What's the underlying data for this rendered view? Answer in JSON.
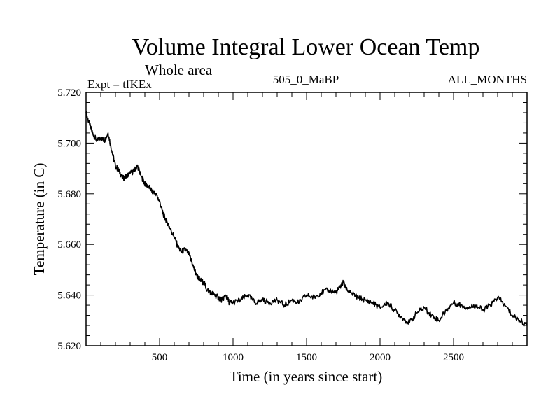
{
  "chart_data": {
    "type": "line",
    "title": "Volume Integral Lower Ocean Temp",
    "subtitle": "Whole area",
    "experiment_label": "Expt = tfKEx",
    "center_label": "505_0_MaBP",
    "right_label": "ALL_MONTHS",
    "xlabel": "Time (in years since start)",
    "ylabel": "Temperature (in C)",
    "xlim": [
      0,
      3000
    ],
    "ylim": [
      5.62,
      5.72
    ],
    "x_ticks": [
      500,
      1000,
      1500,
      2000,
      2500
    ],
    "y_ticks": [
      5.62,
      5.64,
      5.66,
      5.68,
      5.7,
      5.72
    ],
    "x_tick_labels": [
      "500",
      "1000",
      "1500",
      "2000",
      "2500"
    ],
    "y_tick_labels": [
      "5.620",
      "5.640",
      "5.660",
      "5.680",
      "5.700",
      "5.720"
    ],
    "grid": false,
    "line_color": "#000000",
    "series": [
      {
        "x": [
          0,
          25,
          50,
          75,
          100,
          125,
          150,
          175,
          200,
          225,
          250,
          275,
          300,
          325,
          350,
          375,
          400,
          425,
          450,
          475,
          500,
          525,
          550,
          575,
          600,
          625,
          650,
          675,
          700,
          725,
          750,
          775,
          800,
          825,
          850,
          875,
          900,
          925,
          950,
          975,
          1000,
          1050,
          1100,
          1150,
          1200,
          1250,
          1300,
          1350,
          1400,
          1450,
          1500,
          1550,
          1600,
          1650,
          1700,
          1725,
          1750,
          1775,
          1800,
          1850,
          1900,
          1950,
          2000,
          2050,
          2100,
          2150,
          2200,
          2250,
          2300,
          2350,
          2400,
          2450,
          2500,
          2550,
          2600,
          2650,
          2700,
          2750,
          2800,
          2850,
          2900,
          2950,
          3000
        ],
        "values": [
          5.712,
          5.707,
          5.703,
          5.701,
          5.702,
          5.701,
          5.704,
          5.697,
          5.691,
          5.689,
          5.686,
          5.687,
          5.688,
          5.689,
          5.691,
          5.687,
          5.684,
          5.683,
          5.681,
          5.68,
          5.677,
          5.672,
          5.669,
          5.666,
          5.663,
          5.659,
          5.657,
          5.658,
          5.656,
          5.652,
          5.648,
          5.646,
          5.645,
          5.642,
          5.641,
          5.64,
          5.639,
          5.638,
          5.64,
          5.637,
          5.637,
          5.638,
          5.64,
          5.637,
          5.638,
          5.637,
          5.638,
          5.636,
          5.638,
          5.637,
          5.64,
          5.639,
          5.641,
          5.642,
          5.641,
          5.643,
          5.645,
          5.642,
          5.641,
          5.639,
          5.638,
          5.637,
          5.635,
          5.637,
          5.634,
          5.631,
          5.629,
          5.633,
          5.635,
          5.632,
          5.63,
          5.634,
          5.637,
          5.636,
          5.635,
          5.636,
          5.634,
          5.636,
          5.639,
          5.636,
          5.632,
          5.63,
          5.628
        ]
      }
    ]
  }
}
